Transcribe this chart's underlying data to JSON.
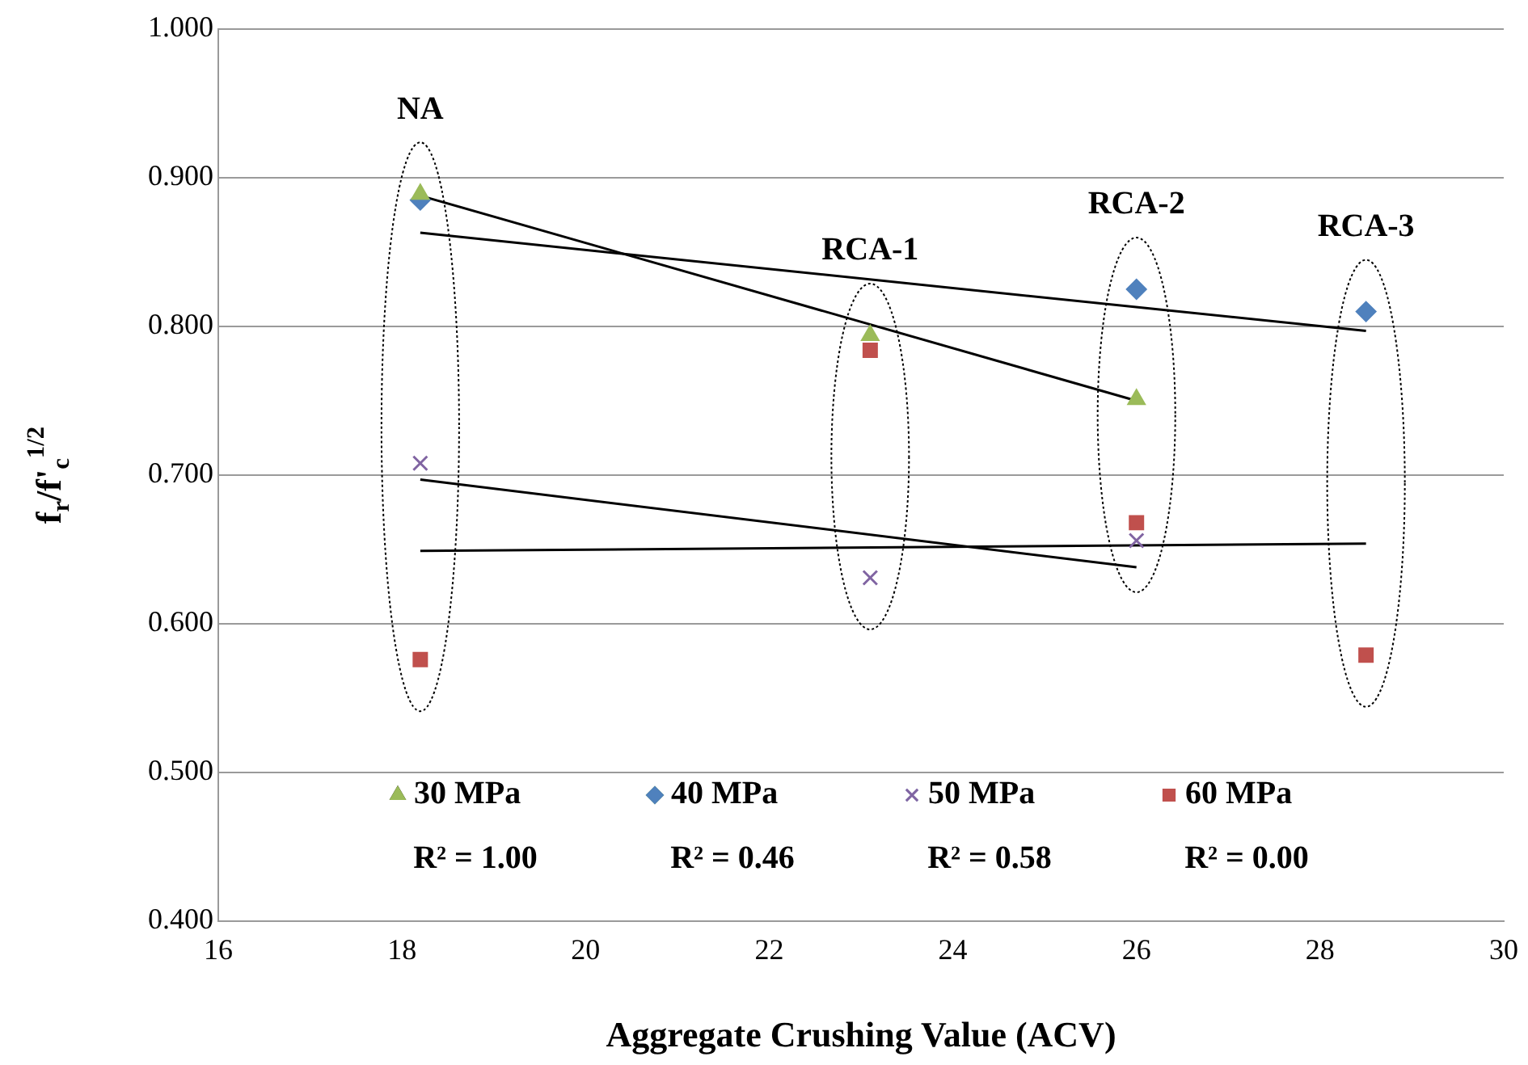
{
  "chart_data": {
    "type": "scatter",
    "xlabel": "Aggregate Crushing Value (ACV)",
    "ylabel": "f$_{r}$/f'$_{c}$$^{1/2}$",
    "x": [
      18.2,
      23.1,
      26.0,
      28.5
    ],
    "series": [
      {
        "name": "30 MPa",
        "color": "#9bbb59",
        "marker": "triangle",
        "values": [
          0.889,
          0.794,
          0.751,
          null
        ]
      },
      {
        "name": "40 MPa",
        "color": "#4f81bd",
        "marker": "diamond",
        "values": [
          0.885,
          null,
          0.825,
          0.81
        ]
      },
      {
        "name": "50 MPa",
        "color": "#8064a2",
        "marker": "cross",
        "values": [
          0.708,
          0.631,
          0.656,
          null
        ]
      },
      {
        "name": "60 MPa",
        "color": "#c0504d",
        "marker": "square",
        "values": [
          0.576,
          0.784,
          0.668,
          0.579
        ]
      },
      {
        "type": "line",
        "color": "#000000",
        "x": [
          18.2,
          26.0
        ],
        "values": [
          0.888,
          0.75
        ]
      },
      {
        "type": "line",
        "color": "#000000",
        "x": [
          18.2,
          28.5
        ],
        "values": [
          0.863,
          0.797
        ]
      },
      {
        "type": "line",
        "color": "#000000",
        "x": [
          18.2,
          26.0
        ],
        "values": [
          0.697,
          0.638
        ]
      },
      {
        "type": "line",
        "color": "#000000",
        "x": [
          18.2,
          28.5
        ],
        "values": [
          0.649,
          0.654
        ]
      }
    ],
    "xlim": [
      16,
      30
    ],
    "xticks": [
      16,
      18,
      20,
      22,
      24,
      26,
      28,
      30
    ],
    "ylim": [
      0.4,
      1.0
    ],
    "yticks": [
      {
        "value": 0.4,
        "label": "0.400"
      },
      {
        "value": 0.5,
        "label": "0.500"
      },
      {
        "value": 0.6,
        "label": "0.600"
      },
      {
        "value": 0.7,
        "label": "0.700"
      },
      {
        "value": 0.8,
        "label": "0.800"
      },
      {
        "value": 0.9,
        "label": "0.900"
      },
      {
        "value": 1.0,
        "label": "1.000"
      }
    ],
    "grid": "y",
    "legend": "bottom",
    "annotations": [
      "NA",
      "RCA-1",
      "RCA-2",
      "RCA-3",
      "R² = 1.00",
      "R² = 0.46",
      "R² = 0.58",
      "R² = 0.00"
    ]
  }
}
